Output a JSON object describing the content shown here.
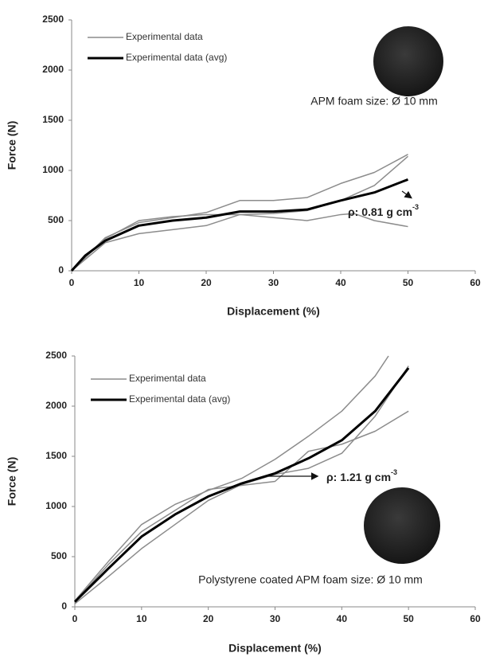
{
  "chart_data": [
    {
      "type": "line",
      "x_label": "Displacement (%)",
      "y_label": "Force (N)",
      "xlim": [
        0,
        60
      ],
      "xticks": [
        0,
        10,
        20,
        30,
        40,
        50,
        60
      ],
      "ylim": [
        0,
        2500
      ],
      "yticks": [
        0,
        500,
        1000,
        1500,
        2000,
        2500
      ],
      "series": [
        {
          "name": "Experimental data",
          "color": "#8c8c8c",
          "width": 1.5,
          "x": [
            0,
            5,
            10,
            15,
            20,
            25,
            30,
            35,
            40,
            45,
            50
          ],
          "values": [
            0,
            330,
            480,
            530,
            580,
            700,
            700,
            730,
            870,
            980,
            1160
          ]
        },
        {
          "color": "#8c8c8c",
          "width": 1.5,
          "x": [
            0,
            5,
            10,
            15,
            20,
            25,
            30,
            35,
            40,
            42,
            45,
            50
          ],
          "values": [
            0,
            280,
            370,
            410,
            450,
            560,
            530,
            500,
            560,
            570,
            500,
            440
          ]
        },
        {
          "color": "#8c8c8c",
          "width": 1.5,
          "x": [
            0,
            5,
            10,
            15,
            20,
            25,
            30,
            35,
            40,
            45,
            50
          ],
          "values": [
            0,
            320,
            500,
            540,
            560,
            560,
            570,
            600,
            700,
            850,
            1140
          ]
        },
        {
          "name": "Experimental data (avg)",
          "color": "#000000",
          "width": 3,
          "x": [
            0,
            2,
            5,
            10,
            15,
            20,
            25,
            30,
            35,
            40,
            45,
            50
          ],
          "values": [
            0,
            150,
            300,
            450,
            500,
            530,
            590,
            590,
            610,
            700,
            780,
            910
          ]
        }
      ],
      "annotations": [
        {
          "text": "APM foam size: Ø 10 mm"
        },
        {
          "text": "ρ: 0.81 g cm",
          "sup": "-3"
        }
      ]
    },
    {
      "type": "line",
      "x_label": "Displacement (%)",
      "y_label": "Force (N)",
      "xlim": [
        0,
        60
      ],
      "xticks": [
        0,
        10,
        20,
        30,
        40,
        50,
        60
      ],
      "ylim": [
        0,
        2500
      ],
      "yticks": [
        0,
        500,
        1000,
        1500,
        2000,
        2500
      ],
      "series": [
        {
          "name": "Experimental data",
          "color": "#8c8c8c",
          "width": 1.5,
          "x": [
            0,
            5,
            10,
            15,
            20,
            25,
            30,
            35,
            40,
            45,
            47
          ],
          "values": [
            60,
            450,
            820,
            1020,
            1160,
            1280,
            1470,
            1700,
            1950,
            2300,
            2500
          ]
        },
        {
          "color": "#8c8c8c",
          "width": 1.5,
          "x": [
            0,
            5,
            10,
            15,
            20,
            25,
            30,
            35,
            40,
            45,
            50
          ],
          "values": [
            50,
            420,
            750,
            960,
            1170,
            1210,
            1250,
            1550,
            1620,
            1750,
            1950
          ]
        },
        {
          "color": "#8c8c8c",
          "width": 1.5,
          "x": [
            0,
            5,
            10,
            15,
            20,
            25,
            30,
            35,
            40,
            45,
            50
          ],
          "values": [
            30,
            300,
            580,
            820,
            1060,
            1220,
            1320,
            1380,
            1530,
            1900,
            2400
          ]
        },
        {
          "name": "Experimental data (avg)",
          "color": "#000000",
          "width": 3,
          "x": [
            0,
            5,
            10,
            15,
            20,
            25,
            30,
            35,
            40,
            45,
            50
          ],
          "values": [
            50,
            380,
            700,
            920,
            1100,
            1230,
            1330,
            1480,
            1660,
            1950,
            2380
          ]
        }
      ],
      "annotations": [
        {
          "text": "Polystyrene coated APM foam size: Ø 10 mm"
        },
        {
          "text": "ρ: 1.21 g cm",
          "sup": "-3"
        }
      ]
    }
  ]
}
